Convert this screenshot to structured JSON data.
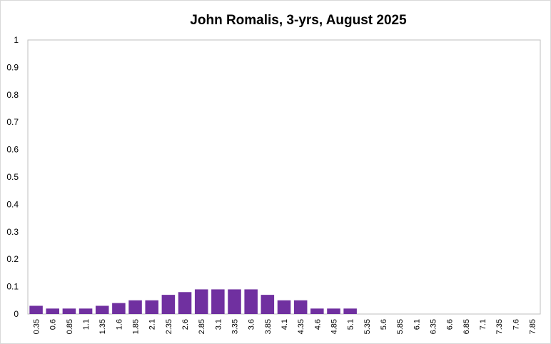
{
  "chart_data": {
    "type": "bar",
    "title": "John Romalis, 3-yrs, August 2025",
    "xlabel": "",
    "ylabel": "",
    "ylim": [
      0,
      1
    ],
    "yticks": [
      "0",
      "0.1",
      "0.2",
      "0.3",
      "0.4",
      "0.5",
      "0.6",
      "0.7",
      "0.8",
      "0.9",
      "1"
    ],
    "categories": [
      "0.35",
      "0.6",
      "0.85",
      "1.1",
      "1.35",
      "1.6",
      "1.85",
      "2.1",
      "2.35",
      "2.6",
      "2.85",
      "3.1",
      "3.35",
      "3.6",
      "3.85",
      "4.1",
      "4.35",
      "4.6",
      "4.85",
      "5.1",
      "5.35",
      "5.6",
      "5.85",
      "6.1",
      "6.35",
      "6.6",
      "6.85",
      "7.1",
      "7.35",
      "7.6",
      "7.85"
    ],
    "values": [
      0.03,
      0.02,
      0.02,
      0.02,
      0.03,
      0.04,
      0.05,
      0.05,
      0.07,
      0.08,
      0.09,
      0.09,
      0.09,
      0.09,
      0.07,
      0.05,
      0.05,
      0.02,
      0.02,
      0.02,
      0,
      0,
      0,
      0,
      0,
      0,
      0,
      0,
      0,
      0,
      0
    ],
    "bar_color": "#7030a0",
    "grid": false,
    "legend": "none"
  }
}
